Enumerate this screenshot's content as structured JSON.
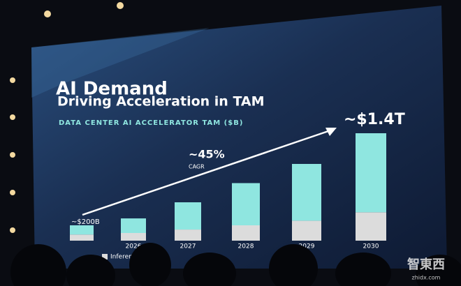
{
  "chart_data": {
    "type": "stacked-bar",
    "title": "AI Demand",
    "subtitle": "Driving Acceleration in TAM",
    "axis_label": "DATA CENTER AI ACCELERATOR TAM ($B)",
    "categories": [
      null,
      "2026",
      "2027",
      "2028",
      "2029",
      "2030"
    ],
    "series": [
      {
        "name": "Inference",
        "color": "#dcdcdc",
        "values": [
          80,
          100,
          145,
          200,
          260,
          370
        ]
      },
      {
        "color": "#8fe6e0",
        "values": [
          120,
          190,
          355,
          550,
          740,
          1030
        ]
      }
    ],
    "annotations": [
      "~$200B",
      "~45%",
      "CAGR",
      "~$1.4T"
    ],
    "watermark": [
      "智東西",
      "zhidx.com"
    ]
  }
}
